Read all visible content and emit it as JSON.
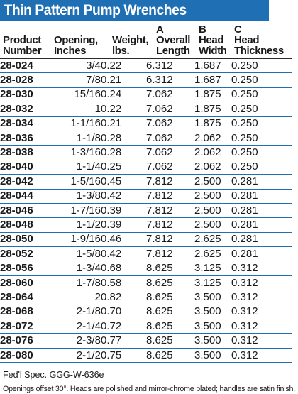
{
  "title": "Thin Pattern Pump Wrenches",
  "columns": [
    {
      "line1": "",
      "line2": "Product",
      "line3": "Number"
    },
    {
      "line1": "",
      "line2": "Opening,",
      "line3": "Inches"
    },
    {
      "line1": "",
      "line2": "Weight,",
      "line3": "lbs."
    },
    {
      "line1": "A",
      "line2": "Overall",
      "line3": "Length"
    },
    {
      "line1": "B",
      "line2": "Head",
      "line3": "Width"
    },
    {
      "line1": "C",
      "line2": "Head",
      "line3": "Thickness"
    }
  ],
  "rows": [
    [
      "28-024",
      "3/4",
      "0.22",
      "6.312",
      "1.687",
      "0.250"
    ],
    [
      "28-028",
      "7/8",
      "0.21",
      "6.312",
      "1.687",
      "0.250"
    ],
    [
      "28-030",
      "15/16",
      "0.24",
      "7.062",
      "1.875",
      "0.250"
    ],
    [
      "28-032",
      "1",
      "0.22",
      "7.062",
      "1.875",
      "0.250"
    ],
    [
      "28-034",
      "1-1/16",
      "0.21",
      "7.062",
      "1.875",
      "0.250"
    ],
    [
      "28-036",
      "1-1/8",
      "0.28",
      "7.062",
      "2.062",
      "0.250"
    ],
    [
      "28-038",
      "1-3/16",
      "0.28",
      "7.062",
      "2.062",
      "0.250"
    ],
    [
      "28-040",
      "1-1/4",
      "0.25",
      "7.062",
      "2.062",
      "0.250"
    ],
    [
      "28-042",
      "1-5/16",
      "0.45",
      "7.812",
      "2.500",
      "0.281"
    ],
    [
      "28-044",
      "1-3/8",
      "0.42",
      "7.812",
      "2.500",
      "0.281"
    ],
    [
      "28-046",
      "1-7/16",
      "0.39",
      "7.812",
      "2.500",
      "0.281"
    ],
    [
      "28-048",
      "1-1/2",
      "0.39",
      "7.812",
      "2.500",
      "0.281"
    ],
    [
      "28-050",
      "1-9/16",
      "0.46",
      "7.812",
      "2.625",
      "0.281"
    ],
    [
      "28-052",
      "1-5/8",
      "0.42",
      "7.812",
      "2.625",
      "0.281"
    ],
    [
      "28-056",
      "1-3/4",
      "0.68",
      "8.625",
      "3.125",
      "0.312"
    ],
    [
      "28-060",
      "1-7/8",
      "0.58",
      "8.625",
      "3.125",
      "0.312"
    ],
    [
      "28-064",
      "2",
      "0.82",
      "8.625",
      "3.500",
      "0.312"
    ],
    [
      "28-068",
      "2-1/8",
      "0.70",
      "8.625",
      "3.500",
      "0.312"
    ],
    [
      "28-072",
      "2-1/4",
      "0.72",
      "8.625",
      "3.500",
      "0.312"
    ],
    [
      "28-076",
      "2-3/8",
      "0.77",
      "8.625",
      "3.500",
      "0.312"
    ],
    [
      "28-080",
      "2-1/2",
      "0.75",
      "8.625",
      "3.500",
      "0.312"
    ]
  ],
  "footer": {
    "spec": "Fed'l Spec. GGG-W-636e",
    "note": "Openings offset 30°. Heads are polished and mirror-chrome plated; handles are satin finish."
  },
  "colors": {
    "accent": "#1f6fb5",
    "title_text": "#ffffff"
  }
}
